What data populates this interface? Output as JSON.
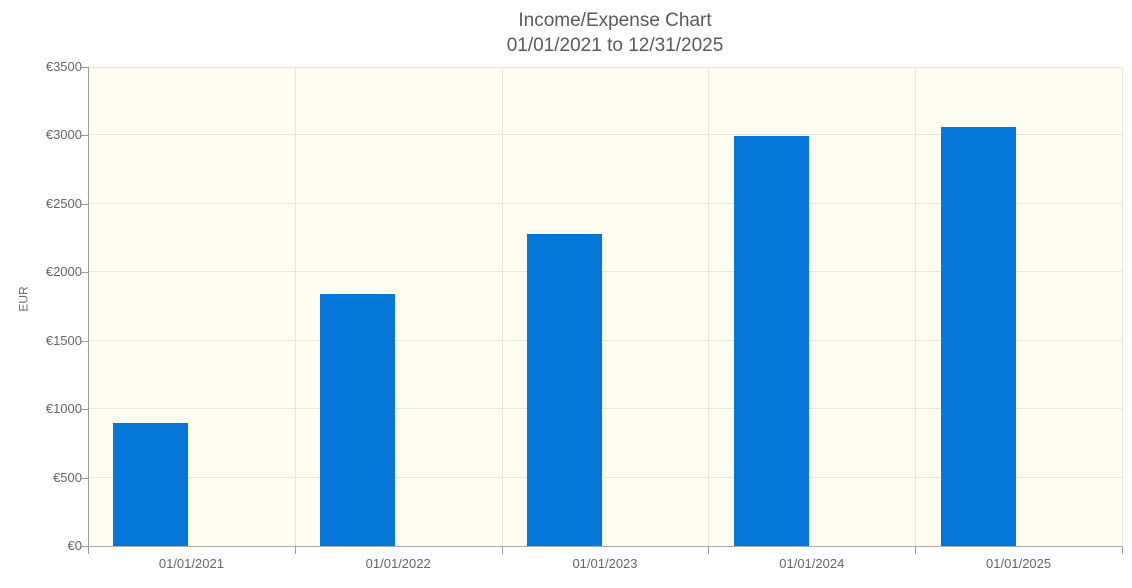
{
  "header": {
    "title": "Income/Expense Chart",
    "subtitle": "01/01/2021 to 12/31/2025"
  },
  "colors": {
    "bar": "#0577d9",
    "plot_background": "#fffdf2",
    "gridline": "#e8e5de",
    "axis_line": "#9a9a9a",
    "title_text": "#5a5a5a",
    "tick_text": "#666666",
    "page_background": "#ffffff"
  },
  "chart_data": {
    "type": "bar",
    "title": "Income/Expense Chart",
    "subtitle": "01/01/2021 to 12/31/2025",
    "categories": [
      "01/01/2021",
      "01/01/2022",
      "01/01/2023",
      "01/01/2024",
      "01/01/2025"
    ],
    "values": [
      900,
      1845,
      2280,
      2995,
      3060
    ],
    "xlabel": "",
    "ylabel": "EUR",
    "ylim": [
      0,
      3500
    ],
    "y_tick_step": 500,
    "y_tick_prefix": "€",
    "y_tick_labels": [
      "€0",
      "€500",
      "€1000",
      "€1500",
      "€2000",
      "€2500",
      "€3000",
      "€3500"
    ],
    "grid": true,
    "legend_position": "none"
  }
}
